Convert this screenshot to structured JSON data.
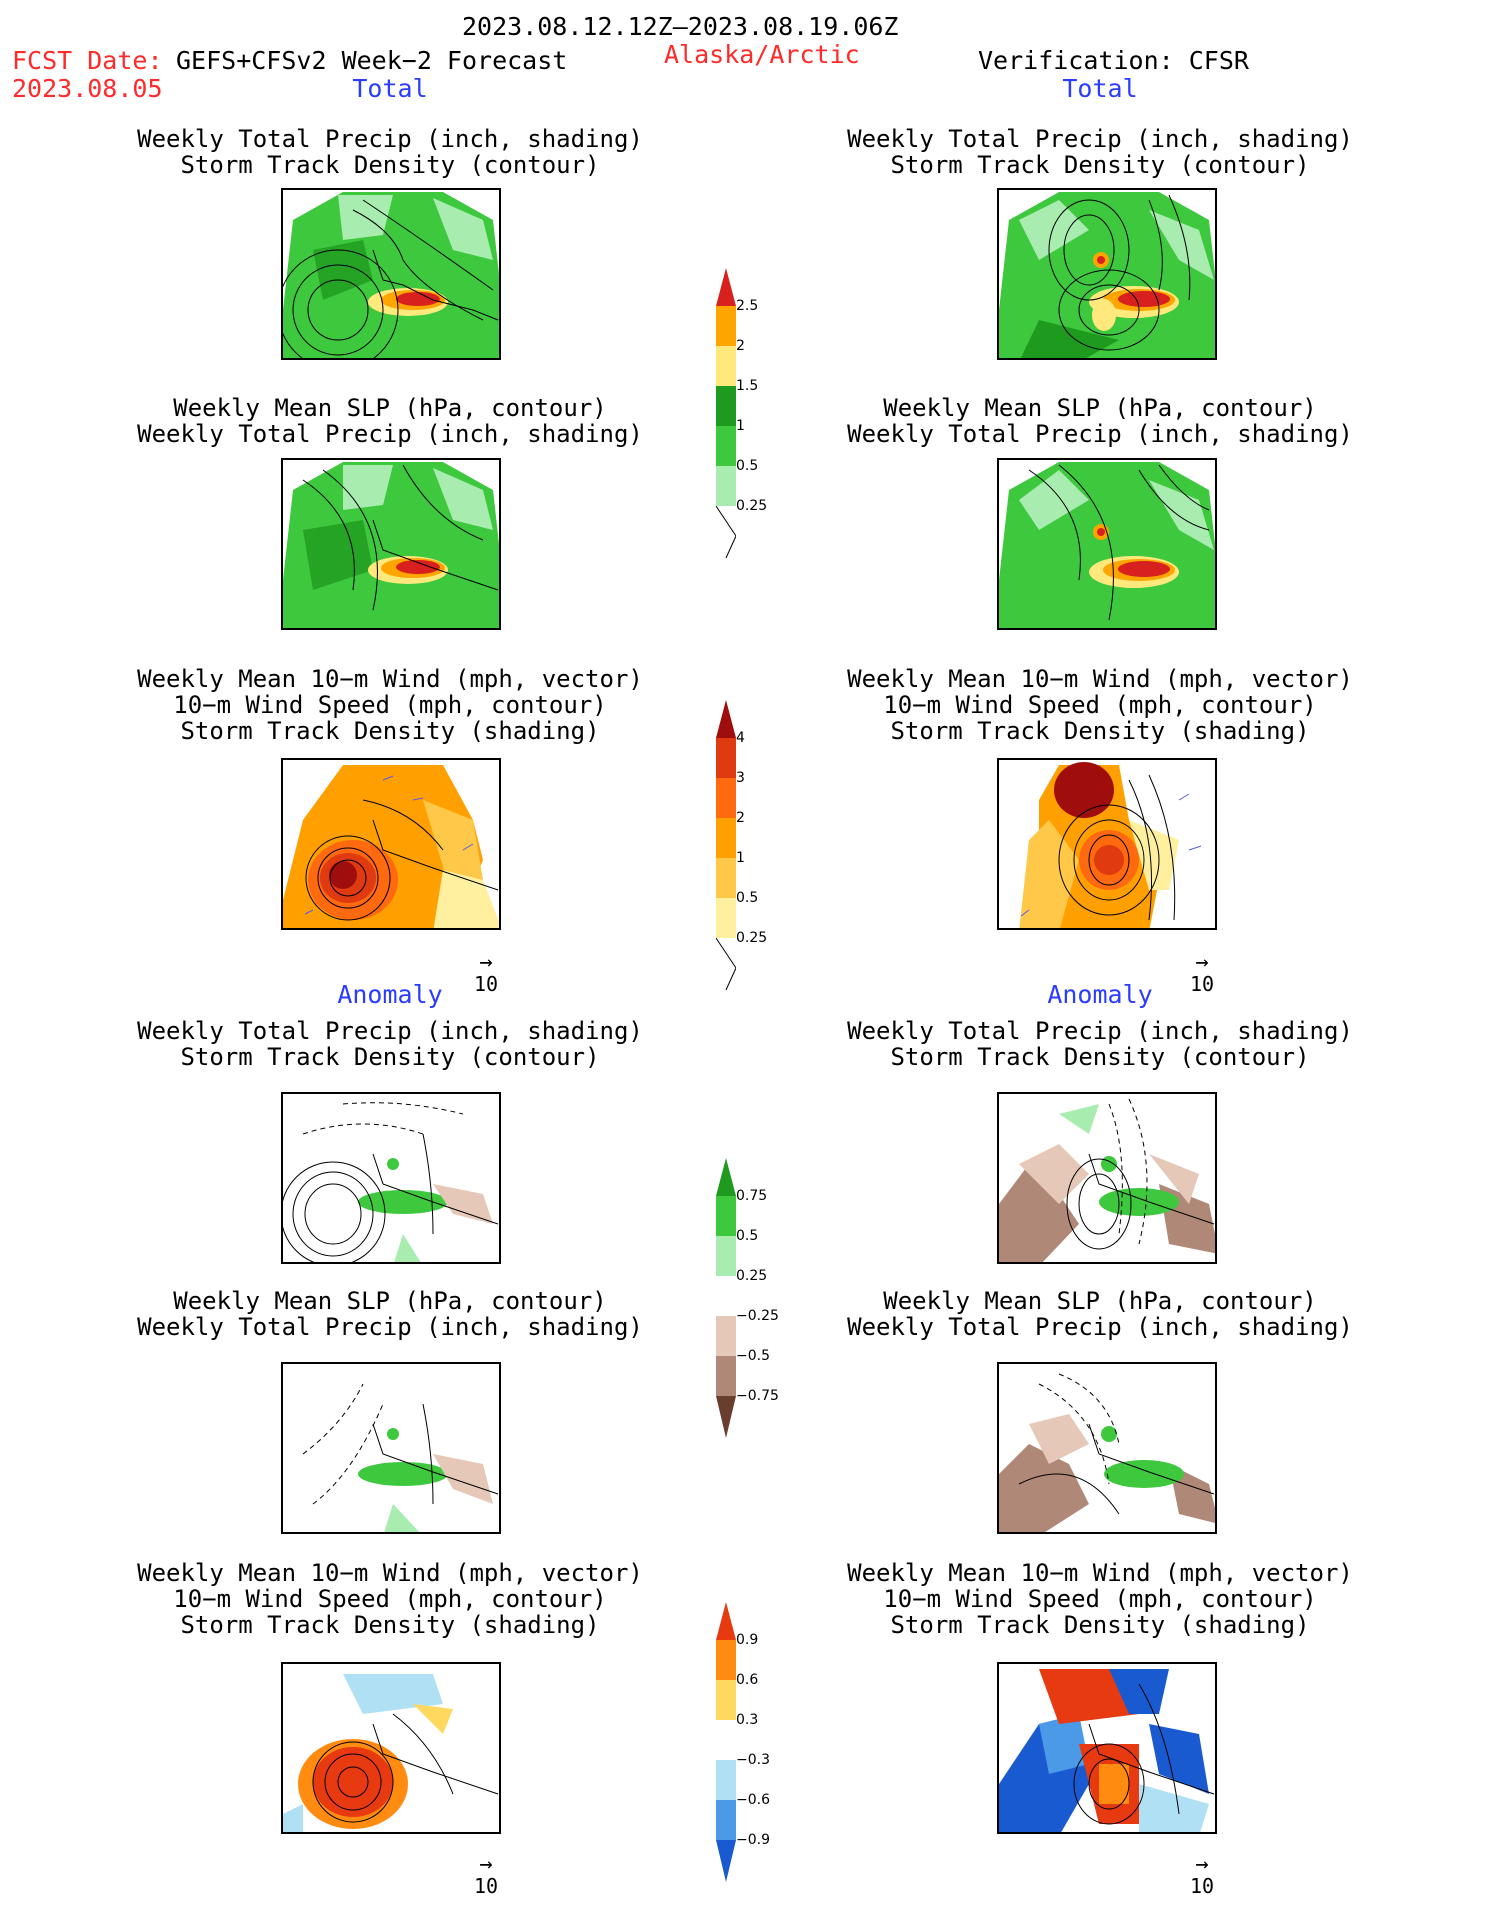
{
  "header": {
    "date_range": "2023.08.12.12Z–2023.08.19.06Z",
    "fcst_label": "FCST Date:",
    "fcst_model": "GEFS+CFSv2 Week−2 Forecast",
    "fcst_date": "2023.08.05",
    "region": "Alaska/Arctic",
    "verification": "Verification: CFSR"
  },
  "sections": {
    "total": "Total",
    "anomaly": "Anomaly"
  },
  "panel_titles": {
    "precip_storm": [
      "Weekly Total Precip (inch, shading)",
      "Storm Track Density (contour)"
    ],
    "slp_precip": [
      "Weekly Mean SLP (hPa, contour)",
      "Weekly Total Precip (inch, shading)"
    ],
    "wind_storm": [
      "Weekly Mean 10−m Wind (mph, vector)",
      "10−m Wind Speed (mph, contour)",
      "Storm Track Density (shading)"
    ]
  },
  "vector_ref": "10",
  "colorbars": {
    "precip_total": {
      "labels": [
        "2.5",
        "2",
        "1.5",
        "1",
        "0.5",
        "0.25"
      ],
      "colors": [
        "#d8201e",
        "#ffa500",
        "#ffe87c",
        "#1e9a1e",
        "#3ec83e",
        "#a8ecb0"
      ]
    },
    "storm_total": {
      "labels": [
        "4",
        "3",
        "2",
        "1",
        "0.5",
        "0.25"
      ],
      "colors": [
        "#a00d0d",
        "#e03a10",
        "#ff6a10",
        "#ffa000",
        "#ffc848",
        "#fff0a0"
      ]
    },
    "precip_anom": {
      "labels": [
        "0.75",
        "0.5",
        "0.25",
        "−0.25",
        "−0.5",
        "−0.75"
      ],
      "colors": [
        "#1e9a1e",
        "#3ec83e",
        "#a8ecb0",
        "#ffffff",
        "#e6c8b8",
        "#b08878",
        "#6a3e2e"
      ]
    },
    "storm_anom": {
      "labels": [
        "0.9",
        "0.6",
        "0.3",
        "−0.3",
        "−0.6",
        "−0.9"
      ],
      "colors": [
        "#e83a10",
        "#ff8c10",
        "#ffd860",
        "#ffffff",
        "#b0e0f4",
        "#4a9ae8",
        "#1a5ad0"
      ]
    }
  }
}
